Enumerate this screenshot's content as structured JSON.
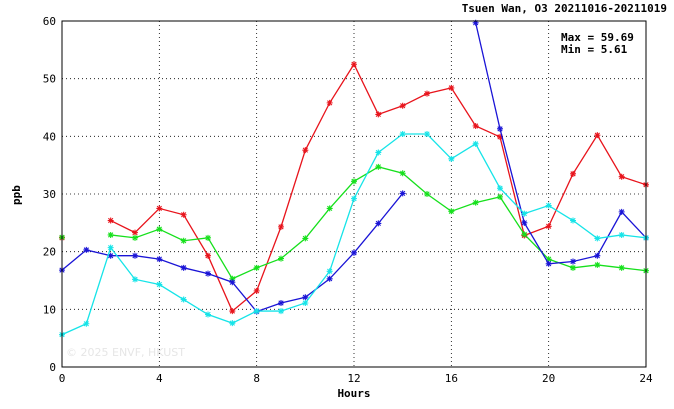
{
  "chart_data": {
    "type": "line",
    "title": "Tsuen Wan, O3 20211016-20211019",
    "xlabel": "Hours",
    "ylabel": "ppb",
    "xlim": [
      0,
      24
    ],
    "ylim": [
      0,
      60
    ],
    "xticks": [
      0,
      4,
      8,
      12,
      16,
      20,
      24
    ],
    "yticks": [
      0,
      10,
      20,
      30,
      40,
      50,
      60
    ],
    "grid": true,
    "stats": {
      "max_label": "Max = 59.69",
      "min_label": "Min =  5.61"
    },
    "watermark": "© 2025  ENVF, HKUST",
    "x": [
      0,
      1,
      2,
      3,
      4,
      5,
      6,
      7,
      8,
      9,
      10,
      11,
      12,
      13,
      14,
      15,
      16,
      17,
      18,
      19,
      20,
      21,
      22,
      23,
      24
    ],
    "series": [
      {
        "color": "#e8141c",
        "values": [
          22.4,
          null,
          25.4,
          23.3,
          27.5,
          26.4,
          19.3,
          9.7,
          13.2,
          24.3,
          37.6,
          45.8,
          52.5,
          43.8,
          45.3,
          47.4,
          48.4,
          41.8,
          39.9,
          22.8,
          24.4,
          33.5,
          40.2,
          33.0,
          31.6
        ]
      },
      {
        "color": "#16e01c",
        "values": [
          22.5,
          null,
          22.9,
          22.4,
          23.9,
          21.9,
          22.4,
          15.3,
          17.2,
          18.8,
          22.3,
          27.5,
          32.2,
          34.7,
          33.6,
          30.0,
          27.0,
          28.5,
          29.5,
          23.0,
          18.7,
          17.2,
          17.7,
          17.2,
          16.7
        ]
      },
      {
        "color": "#1a14d6",
        "values": [
          16.8,
          20.3,
          19.3,
          19.3,
          18.7,
          17.2,
          16.2,
          14.7,
          9.6,
          11.1,
          12.1,
          15.3,
          19.8,
          24.9,
          30.1,
          null,
          null,
          59.69,
          41.3,
          25.0,
          17.9,
          18.3,
          19.3,
          26.9,
          22.4
        ]
      },
      {
        "color": "#16e4e8",
        "values": [
          5.61,
          7.5,
          20.7,
          15.2,
          14.3,
          11.7,
          9.1,
          7.6,
          9.7,
          9.7,
          11.1,
          16.6,
          29.2,
          37.2,
          40.4,
          40.4,
          36.1,
          38.7,
          31.0,
          26.6,
          28.0,
          25.4,
          22.3,
          22.9,
          22.4
        ]
      }
    ]
  }
}
